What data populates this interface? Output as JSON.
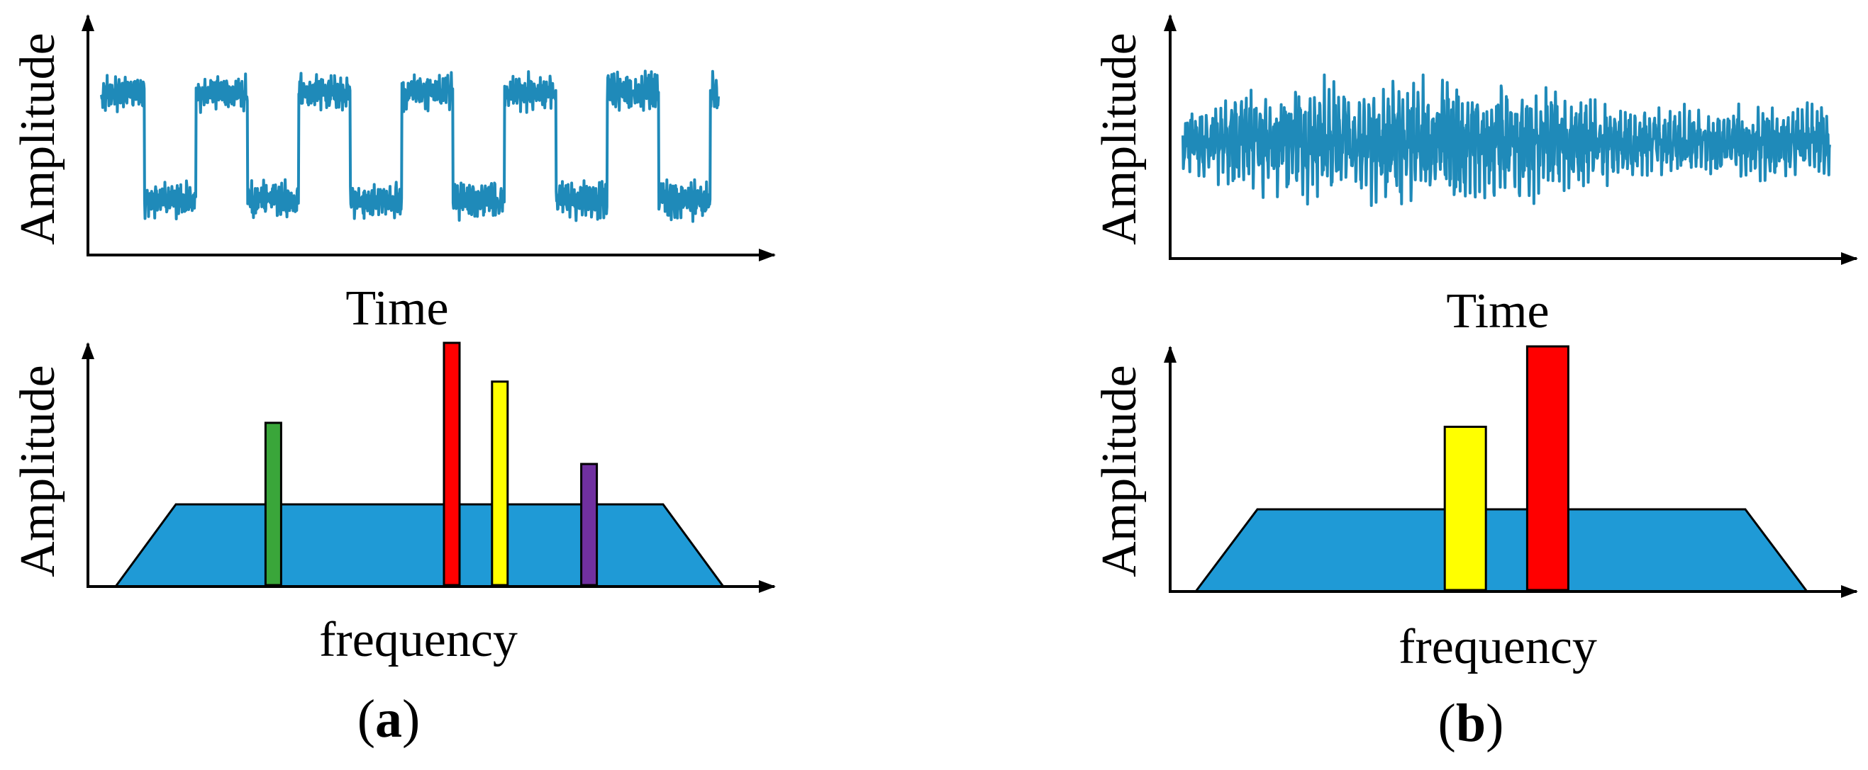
{
  "colors": {
    "signal": "#1f8ab9",
    "noise_floor": "#1f9ad6",
    "green": "#3aa63a",
    "red": "#ff0000",
    "yellow": "#ffff00",
    "purple": "#7030a0",
    "axis": "#000000"
  },
  "panels": [
    {
      "id": "a",
      "caption_open": "(",
      "caption_letter": "a",
      "caption_close": ")",
      "time_plot": {
        "ylabel": "Amplitude",
        "xlabel": "Time",
        "signal": "square-wave-with-noise"
      },
      "spectrum_plot": {
        "ylabel": "Amplitude",
        "xlabel": "frequency",
        "peaks": [
          {
            "name": "green-peak",
            "color": "green",
            "frequency": 0.27,
            "amplitude": 0.67
          },
          {
            "name": "red-peak",
            "color": "red",
            "frequency": 0.53,
            "amplitude": 1.0
          },
          {
            "name": "yellow-peak",
            "color": "yellow",
            "frequency": 0.6,
            "amplitude": 0.84
          },
          {
            "name": "purple-peak",
            "color": "purple",
            "frequency": 0.73,
            "amplitude": 0.5
          }
        ]
      }
    },
    {
      "id": "b",
      "caption_open": "(",
      "caption_letter": "b",
      "caption_close": ")",
      "time_plot": {
        "ylabel": "Amplitude",
        "xlabel": "Time",
        "signal": "random-noise"
      },
      "spectrum_plot": {
        "ylabel": "Amplitude",
        "xlabel": "frequency",
        "peaks": [
          {
            "name": "yellow-peak",
            "color": "yellow",
            "frequency": 0.43,
            "amplitude": 0.67
          },
          {
            "name": "red-peak",
            "color": "red",
            "frequency": 0.55,
            "amplitude": 1.0
          }
        ]
      }
    }
  ]
}
